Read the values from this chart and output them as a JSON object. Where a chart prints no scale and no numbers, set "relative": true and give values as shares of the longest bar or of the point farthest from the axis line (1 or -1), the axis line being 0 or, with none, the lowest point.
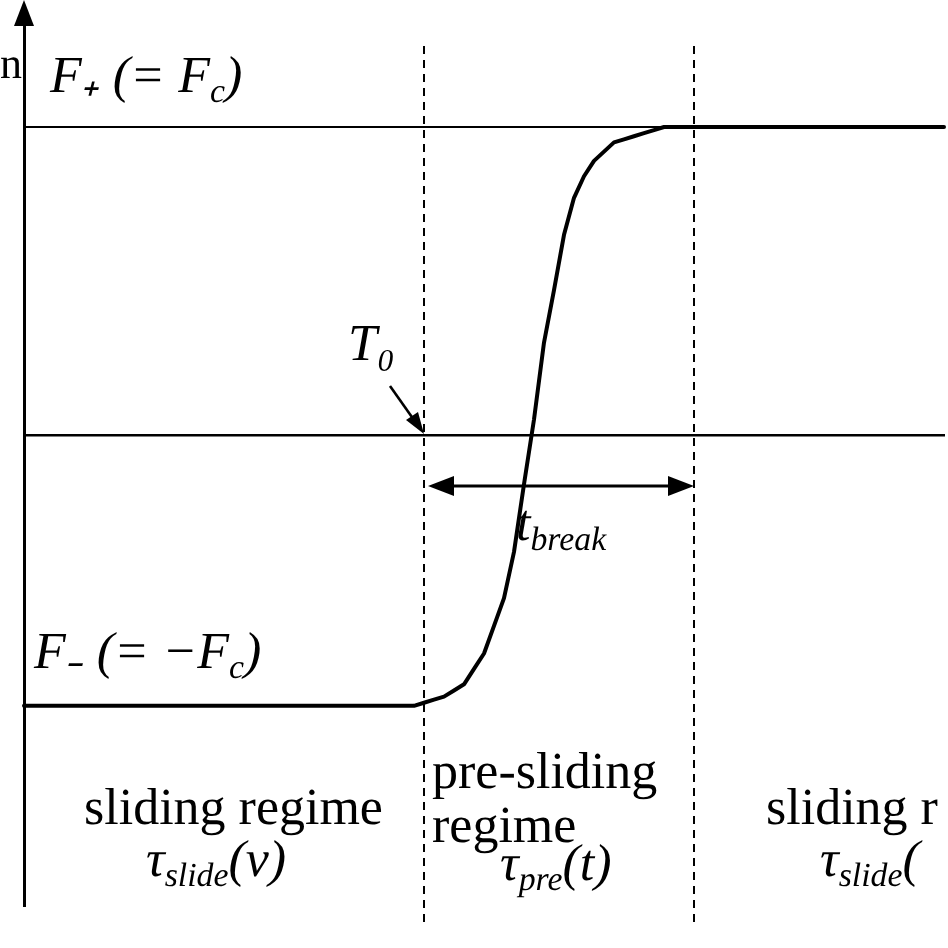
{
  "chart_data": {
    "type": "line",
    "ylabel": "n",
    "categories": [
      null,
      null,
      null,
      null,
      null,
      null,
      null,
      null,
      null,
      null,
      null,
      null,
      null,
      null,
      null,
      null,
      null,
      null,
      null,
      null,
      null,
      null,
      null,
      null,
      null,
      null,
      null,
      null,
      null,
      null,
      null,
      null,
      null,
      null,
      null,
      null,
      null,
      null,
      null,
      null,
      null,
      null,
      null,
      null,
      null,
      null,
      null,
      null,
      null,
      null,
      null,
      null,
      null,
      null,
      null,
      null,
      null,
      null,
      null,
      null,
      null,
      null,
      null,
      null,
      null,
      null,
      null,
      null,
      null,
      null,
      null,
      null,
      null,
      null,
      null,
      null,
      null,
      null,
      null,
      null,
      null,
      null,
      null,
      null,
      null,
      null,
      null,
      null,
      null,
      null,
      null,
      null,
      null
    ],
    "values": [
      -0.88,
      -0.88,
      -0.88,
      -0.88,
      -0.88,
      -0.88,
      -0.88,
      -0.88,
      -0.88,
      -0.88,
      -0.88,
      -0.88,
      -0.88,
      -0.88,
      -0.88,
      -0.88,
      -0.88,
      -0.88,
      -0.88,
      -0.88,
      -0.88,
      -0.88,
      -0.88,
      -0.88,
      -0.88,
      -0.88,
      -0.88,
      -0.88,
      -0.88,
      -0.88,
      -0.88,
      -0.88,
      -0.88,
      -0.88,
      -0.88,
      -0.88,
      -0.88,
      -0.88,
      -0.88,
      -0.88,
      -0.87,
      -0.86,
      -0.85,
      -0.83,
      -0.81,
      -0.76,
      -0.71,
      -0.62,
      -0.53,
      -0.38,
      -0.16,
      0.05,
      0.3,
      0.47,
      0.65,
      0.77,
      0.84,
      0.89,
      0.92,
      0.95,
      0.96,
      0.97,
      0.98,
      0.99,
      1,
      1,
      1,
      1,
      1,
      1,
      1,
      1,
      1,
      1,
      1,
      1,
      1,
      1,
      1,
      1,
      1,
      1,
      1,
      1,
      1,
      1,
      1,
      1,
      1,
      1,
      1,
      1,
      1
    ],
    "color": "#000000",
    "relative": true,
    "marker": "none",
    "line_style": "solid",
    "ref_lines": [
      {
        "axis": "y",
        "value": 1,
        "label": "F₊ (= F$_{c}$)",
        "line_style": "solid"
      }
    ],
    "annotations": [
      {
        "text": "F₋ (= −F$_{c}$)",
        "y": -0.88
      },
      "T₀",
      "t$_{break}$",
      "sliding regime",
      "τ$_{slide}$(v)",
      "pre-sliding regime",
      "τ$_{pre}$(t)",
      "sliding r",
      "τ$_{slide}$("
    ]
  }
}
